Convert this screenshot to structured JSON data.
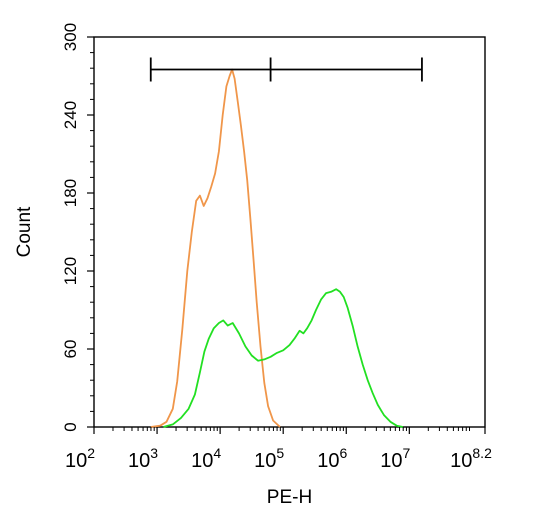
{
  "chart_data": {
    "type": "area",
    "xlabel": "PE-H",
    "ylabel": "Count",
    "x_scale": "log",
    "x_exponent_range": [
      2,
      8.2
    ],
    "ylim": [
      0,
      300
    ],
    "x_ticks": [
      {
        "base": "10",
        "exp": "2"
      },
      {
        "base": "10",
        "exp": "3"
      },
      {
        "base": "10",
        "exp": "4"
      },
      {
        "base": "10",
        "exp": "5"
      },
      {
        "base": "10",
        "exp": "6"
      },
      {
        "base": "10",
        "exp": "7"
      },
      {
        "base": "10",
        "exp": "8.2"
      }
    ],
    "x_tick_positions": [
      2,
      3,
      4,
      5,
      6,
      7,
      8.2
    ],
    "y_ticks": [
      "0",
      "60",
      "120",
      "180",
      "240",
      "300"
    ],
    "y_tick_values": [
      0,
      60,
      120,
      180,
      240,
      300
    ],
    "gate": {
      "start_exp": 2.9,
      "mid_exp": 4.8,
      "end_exp": 7.2,
      "y": 275
    },
    "series": [
      {
        "color": "#f0964a",
        "points": [
          [
            2.9,
            0
          ],
          [
            3.05,
            1
          ],
          [
            3.15,
            4
          ],
          [
            3.25,
            14
          ],
          [
            3.32,
            35
          ],
          [
            3.4,
            75
          ],
          [
            3.48,
            120
          ],
          [
            3.55,
            150
          ],
          [
            3.62,
            174
          ],
          [
            3.68,
            178
          ],
          [
            3.74,
            170
          ],
          [
            3.8,
            176
          ],
          [
            3.86,
            185
          ],
          [
            3.92,
            195
          ],
          [
            3.98,
            212
          ],
          [
            4.04,
            240
          ],
          [
            4.1,
            262
          ],
          [
            4.15,
            270
          ],
          [
            4.19,
            275
          ],
          [
            4.23,
            268
          ],
          [
            4.28,
            250
          ],
          [
            4.33,
            232
          ],
          [
            4.38,
            212
          ],
          [
            4.43,
            190
          ],
          [
            4.48,
            160
          ],
          [
            4.53,
            128
          ],
          [
            4.58,
            96
          ],
          [
            4.64,
            62
          ],
          [
            4.7,
            34
          ],
          [
            4.76,
            16
          ],
          [
            4.84,
            5
          ],
          [
            4.95,
            0
          ]
        ]
      },
      {
        "color": "#22e022",
        "points": [
          [
            3.1,
            0
          ],
          [
            3.25,
            2
          ],
          [
            3.38,
            7
          ],
          [
            3.5,
            14
          ],
          [
            3.6,
            25
          ],
          [
            3.68,
            42
          ],
          [
            3.75,
            58
          ],
          [
            3.82,
            68
          ],
          [
            3.9,
            76
          ],
          [
            3.98,
            80
          ],
          [
            4.05,
            82
          ],
          [
            4.12,
            78
          ],
          [
            4.2,
            80
          ],
          [
            4.3,
            72
          ],
          [
            4.4,
            62
          ],
          [
            4.5,
            55
          ],
          [
            4.6,
            51
          ],
          [
            4.7,
            52
          ],
          [
            4.8,
            54
          ],
          [
            4.9,
            57
          ],
          [
            5.0,
            59
          ],
          [
            5.1,
            63
          ],
          [
            5.18,
            68
          ],
          [
            5.26,
            74
          ],
          [
            5.32,
            72
          ],
          [
            5.38,
            76
          ],
          [
            5.45,
            82
          ],
          [
            5.52,
            90
          ],
          [
            5.6,
            98
          ],
          [
            5.68,
            103
          ],
          [
            5.76,
            104
          ],
          [
            5.84,
            106
          ],
          [
            5.9,
            104
          ],
          [
            5.96,
            100
          ],
          [
            6.02,
            92
          ],
          [
            6.1,
            78
          ],
          [
            6.18,
            62
          ],
          [
            6.26,
            48
          ],
          [
            6.34,
            36
          ],
          [
            6.42,
            26
          ],
          [
            6.5,
            17
          ],
          [
            6.6,
            9
          ],
          [
            6.7,
            4
          ],
          [
            6.8,
            1
          ],
          [
            6.9,
            0
          ]
        ]
      }
    ]
  }
}
